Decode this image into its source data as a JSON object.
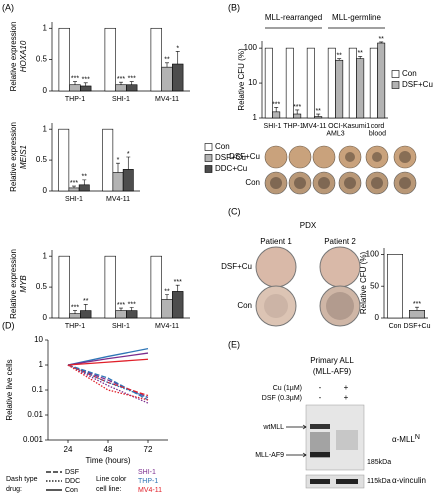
{
  "panel_labels": [
    "(A)",
    "(B)",
    "(C)",
    "(D)",
    "(E)"
  ],
  "chart_data": [
    {
      "type": "bar",
      "ylabel": "Relative expression",
      "gene": "HOXA10",
      "categories": [
        "THP-1",
        "SHI-1",
        "MV4-11"
      ],
      "series": [
        {
          "color": "#ffffff",
          "values": [
            1,
            1,
            1
          ]
        },
        {
          "color": "#b3b3b3",
          "values": [
            0.1,
            0.1,
            0.38
          ],
          "errors": [
            0.05,
            0.04,
            0.07
          ],
          "significance": [
            "***",
            "***",
            "**"
          ]
        },
        {
          "color": "#4d4d4d",
          "values": [
            0.08,
            0.1,
            0.43
          ],
          "errors": [
            0.05,
            0.05,
            0.2
          ],
          "significance": [
            "***",
            "***",
            "*"
          ]
        }
      ],
      "ylim": [
        0,
        1.1
      ],
      "yticks": [
        0,
        0.5,
        1
      ]
    },
    {
      "type": "bar",
      "ylabel": "Relative expression",
      "gene": "MEIS1",
      "categories": [
        "SHI-1",
        "MV4-11"
      ],
      "series": [
        {
          "name": "Con",
          "color": "#ffffff",
          "values": [
            1,
            1
          ]
        },
        {
          "name": "DSF+Cu",
          "color": "#b3b3b3",
          "values": [
            0.05,
            0.3
          ],
          "errors": [
            0.03,
            0.15
          ],
          "significance": [
            "***",
            "*"
          ]
        },
        {
          "name": "DDC+Cu",
          "color": "#4d4d4d",
          "values": [
            0.1,
            0.35
          ],
          "errors": [
            0.08,
            0.2
          ],
          "significance": [
            "**",
            "*"
          ]
        }
      ],
      "ylim": [
        0,
        1.1
      ],
      "yticks": [
        0,
        0.5,
        1
      ],
      "legend": "right"
    },
    {
      "type": "bar",
      "ylabel": "Relative expression",
      "gene": "MYB",
      "categories": [
        "THP-1",
        "SHI-1",
        "MV4-11"
      ],
      "series": [
        {
          "color": "#ffffff",
          "values": [
            1,
            1,
            1
          ]
        },
        {
          "color": "#b3b3b3",
          "values": [
            0.07,
            0.12,
            0.3
          ],
          "errors": [
            0.05,
            0.04,
            0.08
          ],
          "significance": [
            "***",
            "***",
            "**"
          ]
        },
        {
          "color": "#4d4d4d",
          "values": [
            0.12,
            0.12,
            0.43
          ],
          "errors": [
            0.1,
            0.05,
            0.1
          ],
          "significance": [
            "**",
            "***",
            "***"
          ]
        }
      ],
      "ylim": [
        0,
        1.1
      ],
      "yticks": [
        0,
        0.5,
        1
      ]
    },
    {
      "type": "bar",
      "log": true,
      "ylabel": "Relative CFU (%)",
      "group_labels": [
        "MLL-rearranged",
        "MLL-germline"
      ],
      "categories": [
        "SHI-1",
        "THP-1",
        "MV4-11",
        "OCI-\nAML3",
        "Kasumi1",
        "cord\nblood"
      ],
      "series": [
        {
          "name": "Con",
          "color": "#ffffff",
          "values": [
            100,
            100,
            100,
            100,
            100,
            100
          ]
        },
        {
          "name": "DSF+Cu",
          "color": "#b3b3b3",
          "values": [
            1.5,
            1.3,
            1.1,
            45,
            50,
            140
          ],
          "errors": [
            0.5,
            0.4,
            0.2,
            5,
            8,
            10
          ],
          "significance": [
            "***",
            "***",
            "**",
            "**",
            "**",
            "**"
          ]
        }
      ],
      "ylim": [
        1,
        160
      ],
      "yticks": [
        1,
        10,
        100
      ],
      "legend": "right"
    },
    {
      "type": "bar",
      "ylabel": "Relative CFU (%)",
      "categories": [
        "Con",
        "DSF+Cu"
      ],
      "values": [
        100,
        12
      ],
      "colors": [
        "#ffffff",
        "#b3b3b3"
      ],
      "errors": [
        null,
        5
      ],
      "significance": [
        null,
        "***"
      ],
      "ylim": [
        0,
        110
      ],
      "yticks": [
        0,
        50,
        100
      ]
    },
    {
      "type": "line",
      "log": true,
      "xlabel": "Time (hours)",
      "ylabel": "Relative live cells",
      "x": [
        24,
        48,
        72
      ],
      "xlim": [
        12,
        84
      ],
      "xticks": [
        24,
        48,
        72
      ],
      "ylim": [
        0.001,
        10
      ],
      "yticks": [
        0.001,
        0.01,
        0.1,
        1,
        10
      ],
      "drug_legend": {
        "title": [
          "Dash type",
          "drug:"
        ],
        "items": [
          {
            "name": "DSF",
            "dash": "5,2"
          },
          {
            "name": "DDC",
            "dash": "1.5,1.5"
          },
          {
            "name": "Con",
            "dash": "none"
          }
        ]
      },
      "cell_legend": {
        "title": [
          "Line color",
          "cell line:"
        ],
        "items": [
          {
            "name": "SHI-1",
            "color": "#7b2d8e"
          },
          {
            "name": "THP-1",
            "color": "#2e75b6"
          },
          {
            "name": "MV4-11",
            "color": "#e0202a"
          }
        ]
      },
      "series": [
        {
          "drug": 2,
          "cell_line": 1,
          "values": [
            1,
            2.2,
            4.5
          ]
        },
        {
          "drug": 2,
          "cell_line": 0,
          "values": [
            1,
            1.8,
            3
          ]
        },
        {
          "drug": 2,
          "cell_line": 2,
          "values": [
            1,
            1.3,
            1.7
          ]
        },
        {
          "drug": 0,
          "cell_line": 0,
          "values": [
            1,
            0.25,
            0.05
          ]
        },
        {
          "drug": 0,
          "cell_line": 1,
          "values": [
            1,
            0.3,
            0.04
          ]
        },
        {
          "drug": 0,
          "cell_line": 2,
          "values": [
            1,
            0.2,
            0.06
          ]
        },
        {
          "drug": 1,
          "cell_line": 0,
          "values": [
            1,
            0.15,
            0.03
          ]
        },
        {
          "drug": 1,
          "cell_line": 1,
          "values": [
            1,
            0.2,
            0.05
          ]
        },
        {
          "drug": 1,
          "cell_line": 2,
          "values": [
            1,
            0.1,
            0.04
          ]
        }
      ]
    }
  ],
  "colony_rows": [
    "DSF+Cu",
    "Con"
  ],
  "pdx": {
    "title": "PDX",
    "patients": [
      "Patient 1",
      "Patient 2"
    ],
    "rows": [
      "DSF+Cu",
      "Con"
    ]
  },
  "blot": {
    "title": [
      "Primary ALL",
      "(MLL-AF9)"
    ],
    "treatments": [
      {
        "label": "Cu (1µM)",
        "lanes": [
          "-",
          "+"
        ]
      },
      {
        "label": "DSF (0.3µM)",
        "lanes": [
          "-",
          "+"
        ]
      }
    ],
    "bands": [
      "wtMLL",
      "MLL-AF9"
    ],
    "markers": [
      "185kDa",
      "115kDa"
    ],
    "antibodies": [
      {
        "label": "α-MLL",
        "superscript": "N"
      },
      {
        "label": "α-vinculin"
      }
    ]
  }
}
